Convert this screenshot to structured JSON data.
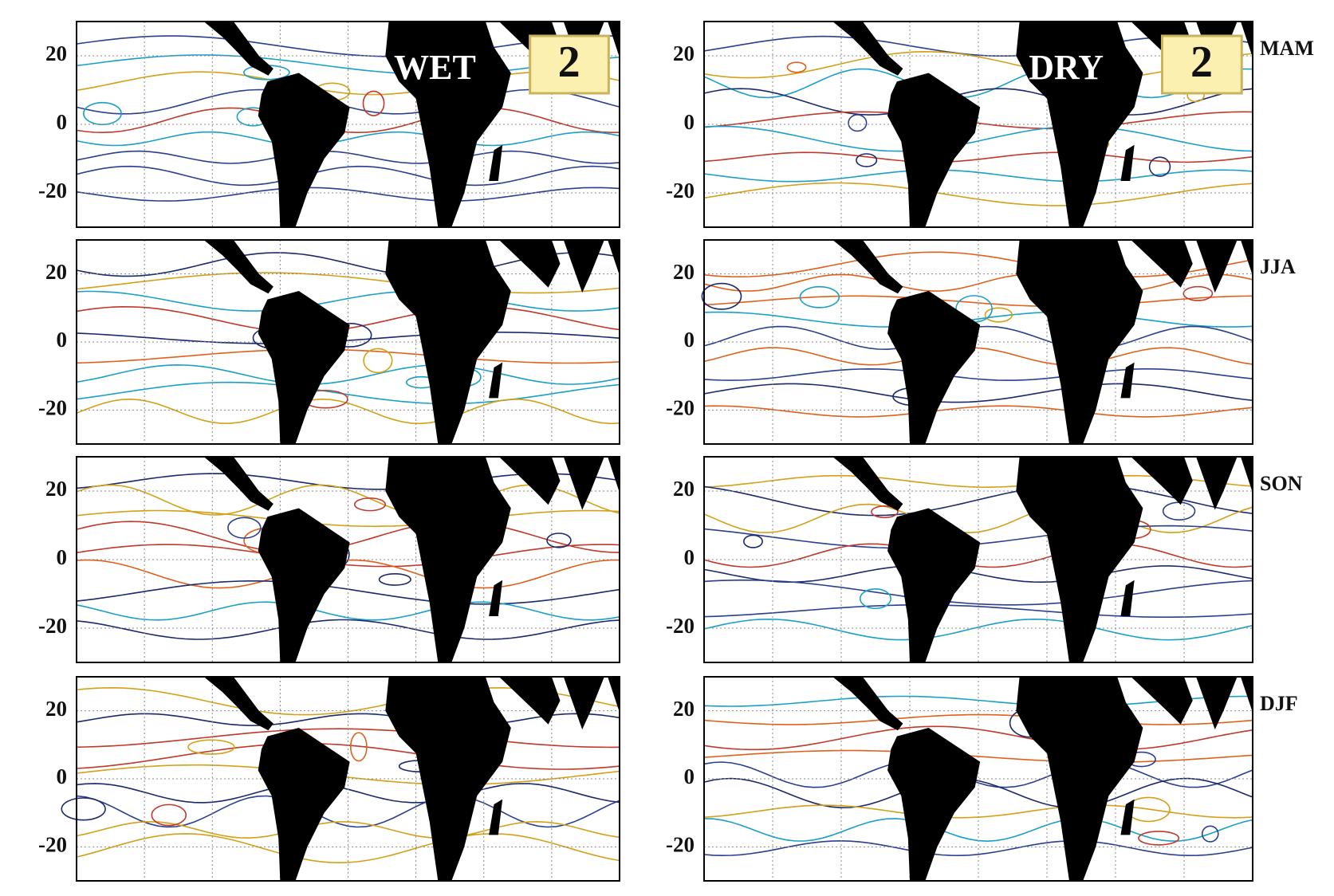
{
  "columns": [
    {
      "label": "WET",
      "badge": "2"
    },
    {
      "label": "DRY",
      "badge": "2"
    }
  ],
  "seasons": [
    "MAM",
    "JJA",
    "SON",
    "DJF"
  ],
  "ylim": [
    -30,
    30
  ],
  "yticks": [
    20,
    0,
    -20
  ]
}
